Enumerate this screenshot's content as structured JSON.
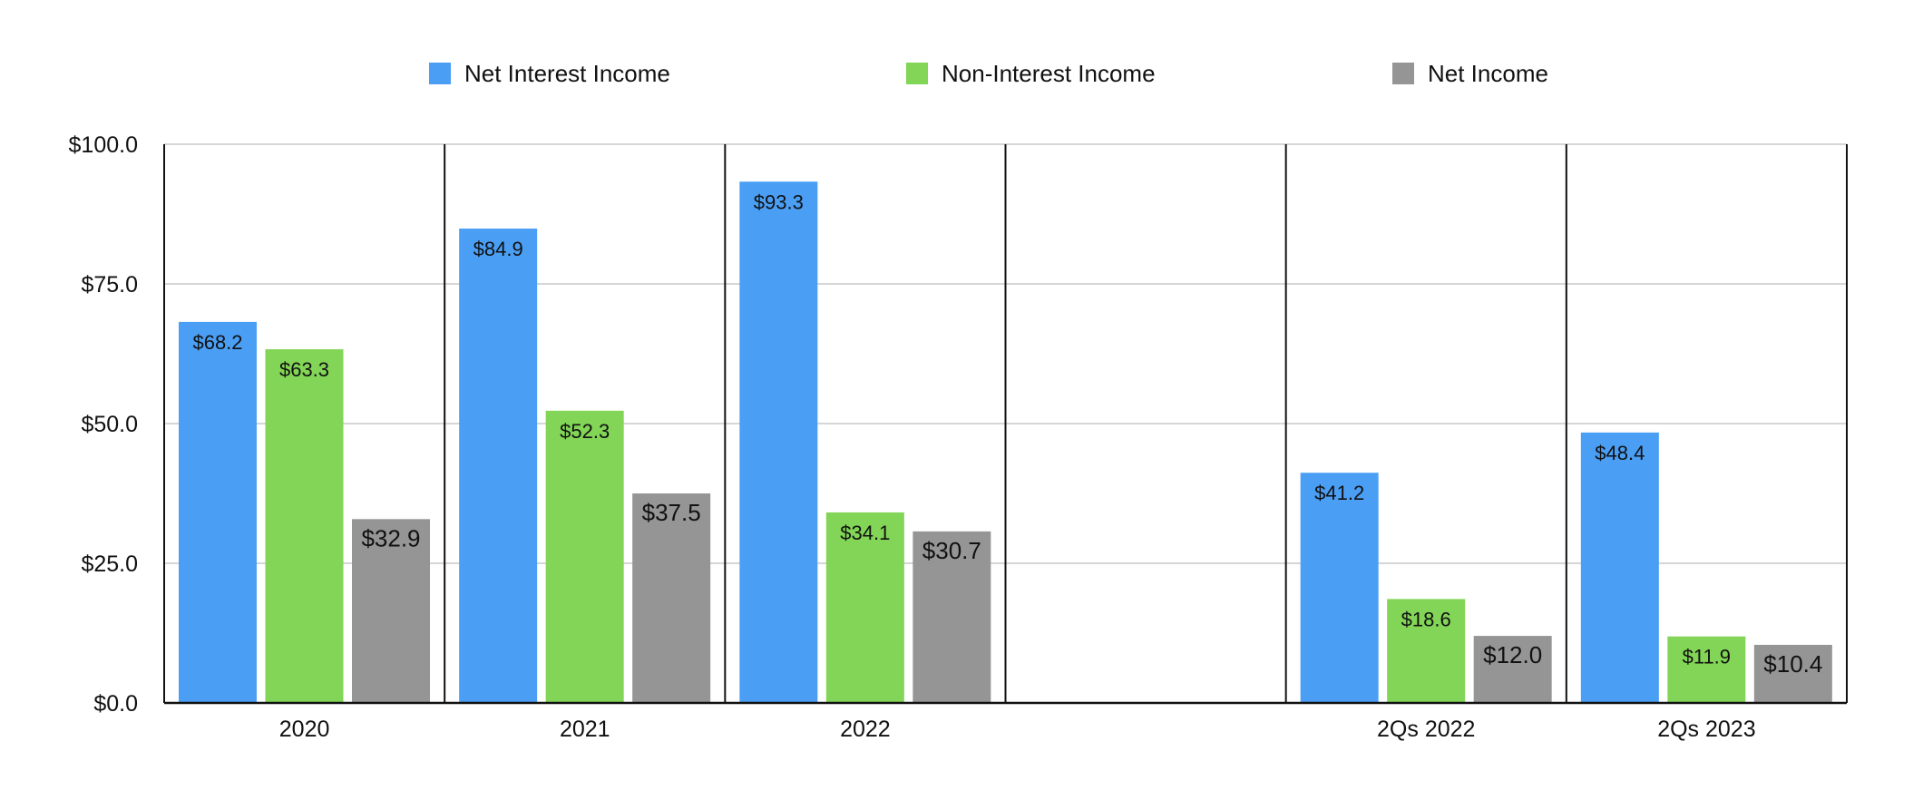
{
  "chart_data": {
    "type": "bar",
    "title": "",
    "xlabel": "",
    "ylabel": "",
    "ylim": [
      0,
      100
    ],
    "yticks": [
      "$0.0",
      "$25.0",
      "$50.0",
      "$75.0",
      "$100.0"
    ],
    "ytick_values": [
      0,
      25,
      50,
      75,
      100
    ],
    "categories": [
      "2020",
      "2021",
      "2022",
      "",
      "2Qs 2022",
      "2Qs 2023"
    ],
    "grid": true,
    "legend_position": "top",
    "series": [
      {
        "name": "Net Interest Income",
        "color": "#4A9FF5",
        "values": [
          68.2,
          84.9,
          93.3,
          null,
          41.2,
          48.4
        ],
        "labels": [
          "$68.2",
          "$84.9",
          "$93.3",
          "",
          "$41.2",
          "$48.4"
        ]
      },
      {
        "name": "Non-Interest Income",
        "color": "#82D556",
        "values": [
          63.3,
          52.3,
          34.1,
          null,
          18.6,
          11.9
        ],
        "labels": [
          "$63.3",
          "$52.3",
          "$34.1",
          "",
          "$18.6",
          "$11.9"
        ]
      },
      {
        "name": "Net Income",
        "color": "#959595",
        "values": [
          32.9,
          37.5,
          30.7,
          null,
          12.0,
          10.4
        ],
        "labels": [
          "$32.9",
          "$37.5",
          "$30.7",
          "",
          "$12.0",
          "$10.4"
        ]
      }
    ]
  }
}
